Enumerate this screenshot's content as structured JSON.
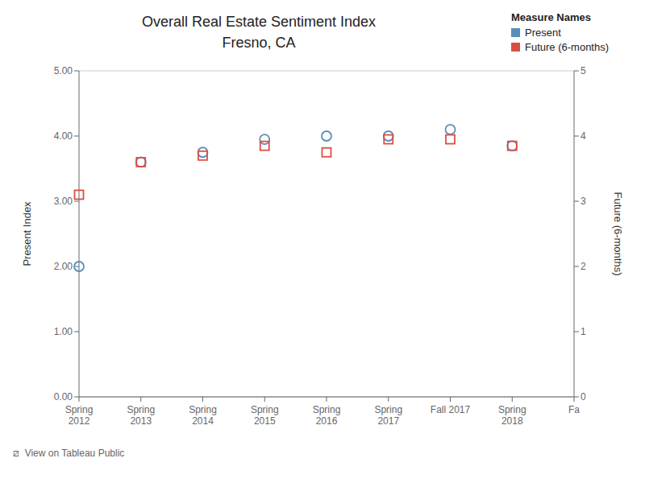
{
  "chart_data": {
    "type": "scatter",
    "title": "Overall Real Estate Sentiment Index",
    "subtitle": "Fresno, CA",
    "categories": [
      "Spring\n2012",
      "Spring\n2013",
      "Spring\n2014",
      "Spring\n2015",
      "Spring\n2016",
      "Spring\n2017",
      "Fall 2017",
      "Spring\n2018",
      "Fa"
    ],
    "series": [
      {
        "name": "Present",
        "color": "#5B8DB8",
        "marker": "circle",
        "values": [
          2.0,
          3.6,
          3.75,
          3.95,
          4.0,
          4.0,
          4.1,
          3.85,
          null
        ]
      },
      {
        "name": "Future (6-months)",
        "color": "#D94F43",
        "marker": "square",
        "values": [
          3.1,
          3.6,
          3.7,
          3.85,
          3.75,
          3.95,
          3.95,
          3.85,
          null
        ]
      }
    ],
    "ylabel": "Present Index",
    "y2label": "Future (6-months)",
    "ylim": [
      0,
      5.0
    ],
    "yticks": [
      {
        "value": 0.0,
        "label": "0.00"
      },
      {
        "value": 1.0,
        "label": "1.00"
      },
      {
        "value": 2.0,
        "label": "2.00"
      },
      {
        "value": 3.0,
        "label": "3.00"
      },
      {
        "value": 4.0,
        "label": "4.00"
      },
      {
        "value": 5.0,
        "label": "5.00"
      }
    ],
    "y2lim": [
      0,
      5
    ],
    "y2ticks": [
      0,
      1,
      2,
      3,
      4,
      5
    ],
    "grid": true,
    "legend": "upper right",
    "legend_title": "Measure Names",
    "annotations": [
      "⧄  View on Tableau Public"
    ]
  }
}
